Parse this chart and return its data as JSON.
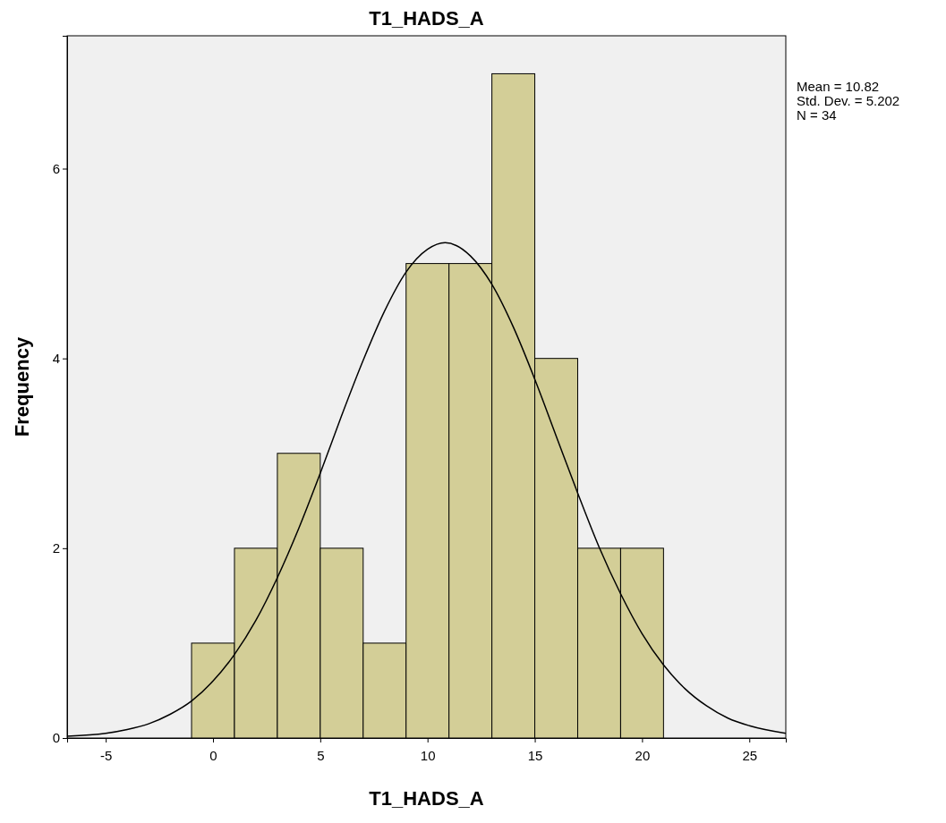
{
  "chart_data": {
    "type": "histogram",
    "title": "T1_HADS_A",
    "xlabel": "T1_HADS_A",
    "ylabel": "Frequency",
    "bins": [
      -1,
      1,
      3,
      5,
      7,
      9,
      11,
      13,
      15,
      17,
      19,
      21
    ],
    "values": [
      1,
      2,
      3,
      2,
      1,
      5,
      5,
      7,
      4,
      2,
      2
    ],
    "color": "#d3ce97",
    "series": [
      {
        "type": "line",
        "color": "#000000",
        "x": [
          -6.8,
          -5,
          -4,
          -3,
          -2,
          -1,
          0,
          1,
          2,
          3,
          4,
          5,
          6,
          7,
          8,
          9,
          10,
          10.82,
          12,
          13,
          14,
          15,
          16,
          17,
          18,
          19,
          20,
          21,
          22,
          23,
          24,
          25,
          26.7
        ],
        "values": [
          0.02,
          0.05,
          0.09,
          0.15,
          0.25,
          0.39,
          0.6,
          0.88,
          1.24,
          1.69,
          2.21,
          2.79,
          3.4,
          3.98,
          4.5,
          4.91,
          5.15,
          5.22,
          5.08,
          4.78,
          4.33,
          3.78,
          3.18,
          2.58,
          2.01,
          1.52,
          1.1,
          0.77,
          0.52,
          0.34,
          0.21,
          0.13,
          0.05
        ]
      }
    ],
    "xlim": [
      -6.8,
      26.7
    ],
    "ylim": [
      0,
      7.4
    ],
    "xticks": [
      -5,
      0,
      5,
      10,
      15,
      20,
      25
    ],
    "yticks": [
      0,
      2,
      4,
      6
    ],
    "annotations": [
      "Mean = 10.82",
      "Std. Dev. = 5.202",
      "N = 34"
    ]
  }
}
